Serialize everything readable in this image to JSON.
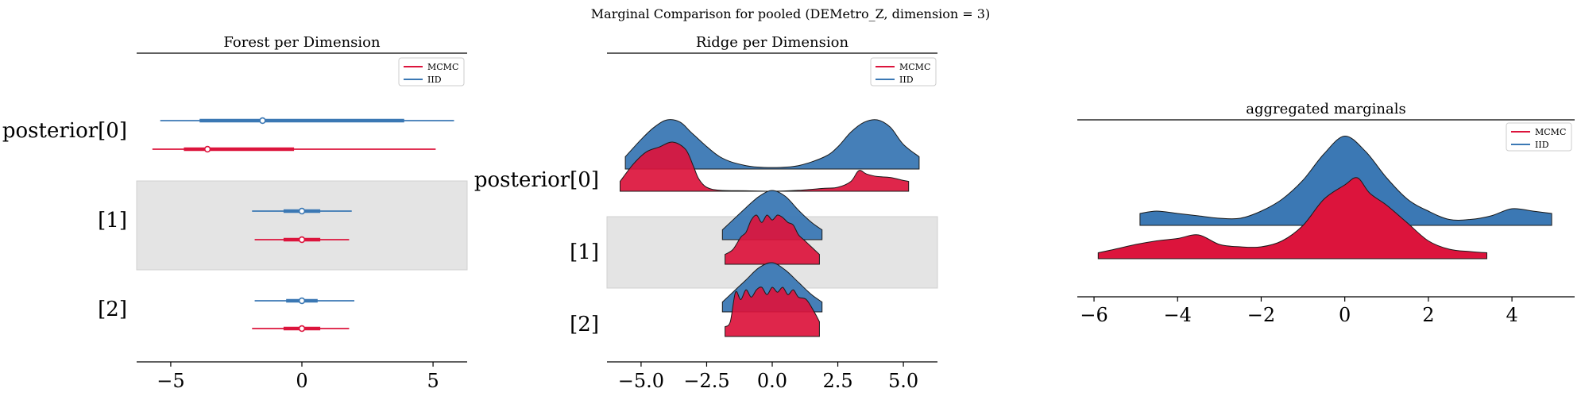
{
  "suptitle": "Marginal Comparison for pooled (DEMetro_Z, dimension = 3)",
  "colors": {
    "mcmc": "#dc143c",
    "iid": "#3b78b4",
    "band": "#e4e4e4"
  },
  "chart_data": [
    {
      "type": "forest",
      "title": "Forest per Dimension",
      "xlim": [
        -6.3,
        6.3
      ],
      "xticks": [
        -5,
        0,
        5
      ],
      "xtick_labels": [
        "−5",
        "0",
        "5"
      ],
      "rows": [
        "posterior[0]",
        "[1]",
        "[2]"
      ],
      "legend": {
        "placement": "top-right",
        "entries": [
          "MCMC",
          "IID"
        ]
      },
      "series": [
        {
          "name": "IID",
          "intervals": [
            {
              "low": -5.4,
              "q25": -3.9,
              "median": -1.5,
              "q75": 3.9,
              "high": 5.8
            },
            {
              "low": -1.9,
              "q25": -0.7,
              "median": 0.0,
              "q75": 0.7,
              "high": 1.9
            },
            {
              "low": -1.8,
              "q25": -0.6,
              "median": 0.0,
              "q75": 0.6,
              "high": 2.0
            }
          ]
        },
        {
          "name": "MCMC",
          "intervals": [
            {
              "low": -5.7,
              "q25": -4.5,
              "median": -3.6,
              "q75": -0.3,
              "high": 5.1
            },
            {
              "low": -1.8,
              "q25": -0.7,
              "median": 0.0,
              "q75": 0.7,
              "high": 1.8
            },
            {
              "low": -1.9,
              "q25": -0.7,
              "median": 0.0,
              "q75": 0.7,
              "high": 1.8
            }
          ]
        }
      ]
    },
    {
      "type": "ridge",
      "title": "Ridge per Dimension",
      "xlim": [
        -6.3,
        6.3
      ],
      "xticks": [
        -5,
        -2.5,
        0,
        2.5,
        5
      ],
      "xtick_labels": [
        "−5.0",
        "−2.5",
        "0.0",
        "2.5",
        "5.0"
      ],
      "rows": [
        "posterior[0]",
        "[1]",
        "[2]"
      ],
      "legend": {
        "placement": "top-right",
        "entries": [
          "MCMC",
          "IID"
        ]
      },
      "series": [
        {
          "name": "IID",
          "densities": [
            {
              "x": [
                -5.6,
                -5,
                -4.5,
                -4,
                -3.5,
                -3,
                -2,
                -1,
                0,
                1,
                2,
                2.5,
                3,
                3.5,
                4,
                4.5,
                5,
                5.6
              ],
              "y": [
                0.25,
                0.6,
                0.85,
                1.0,
                0.95,
                0.7,
                0.25,
                0.07,
                0.03,
                0.07,
                0.25,
                0.45,
                0.75,
                0.95,
                1.0,
                0.85,
                0.5,
                0.25
              ]
            },
            {
              "x": [
                -1.9,
                -1.5,
                -1,
                -0.5,
                0,
                0.5,
                1,
                1.5,
                1.9
              ],
              "y": [
                0.2,
                0.4,
                0.65,
                0.88,
                1.0,
                0.88,
                0.6,
                0.35,
                0.2
              ]
            },
            {
              "x": [
                -1.9,
                -1.5,
                -1,
                -0.5,
                0,
                0.5,
                1,
                1.5,
                1.9
              ],
              "y": [
                0.2,
                0.4,
                0.65,
                0.9,
                1.0,
                0.85,
                0.6,
                0.35,
                0.2
              ]
            }
          ]
        },
        {
          "name": "MCMC",
          "densities": [
            {
              "x": [
                -5.8,
                -5.3,
                -4.8,
                -4.3,
                -3.8,
                -3.3,
                -3,
                -2.8,
                -2.5,
                -2,
                -1,
                0,
                1,
                2,
                2.5,
                3,
                3.3,
                3.6,
                4,
                4.5,
                5,
                5.2
              ],
              "y": [
                0.2,
                0.55,
                0.8,
                0.9,
                1.0,
                0.85,
                0.5,
                0.25,
                0.08,
                0.02,
                0.01,
                0.0,
                0.02,
                0.06,
                0.08,
                0.2,
                0.42,
                0.35,
                0.3,
                0.28,
                0.22,
                0.2
              ]
            },
            {
              "x": [
                -1.8,
                -1.5,
                -1.2,
                -1,
                -0.8,
                -0.6,
                -0.4,
                -0.2,
                0,
                0.2,
                0.4,
                0.6,
                0.8,
                1,
                1.2,
                1.5,
                1.8
              ],
              "y": [
                0.2,
                0.3,
                0.55,
                0.65,
                0.9,
                1.0,
                0.85,
                1.0,
                0.9,
                1.0,
                0.95,
                0.85,
                0.8,
                0.6,
                0.5,
                0.35,
                0.2
              ]
            },
            {
              "x": [
                -1.8,
                -1.6,
                -1.4,
                -1.2,
                -1,
                -0.8,
                -0.6,
                -0.4,
                -0.2,
                0,
                0.2,
                0.4,
                0.6,
                0.8,
                1,
                1.3,
                1.6,
                1.8
              ],
              "y": [
                0.2,
                0.3,
                0.9,
                0.75,
                0.95,
                0.8,
                0.95,
                1.0,
                0.85,
                1.0,
                0.9,
                1.0,
                0.85,
                0.95,
                0.8,
                0.75,
                0.5,
                0.3
              ]
            }
          ]
        }
      ]
    },
    {
      "type": "area",
      "title": "aggregated marginals",
      "xlim": [
        -6.4,
        5.5
      ],
      "xticks": [
        -6,
        -4,
        -2,
        0,
        2,
        4
      ],
      "xtick_labels": [
        "−6",
        "−4",
        "−2",
        "0",
        "2",
        "4"
      ],
      "legend": {
        "placement": "top-right",
        "entries": [
          "MCMC",
          "IID"
        ]
      },
      "series": [
        {
          "name": "IID",
          "x": [
            -4.9,
            -4.5,
            -4,
            -3.5,
            -3,
            -2.5,
            -2,
            -1.5,
            -1,
            -0.5,
            0,
            0.5,
            1,
            1.5,
            2,
            2.5,
            3,
            3.5,
            4,
            4.5,
            4.95
          ],
          "y": [
            0.1,
            0.12,
            0.1,
            0.08,
            0.06,
            0.06,
            0.12,
            0.22,
            0.38,
            0.6,
            0.75,
            0.62,
            0.4,
            0.22,
            0.12,
            0.05,
            0.05,
            0.08,
            0.14,
            0.12,
            0.1
          ]
        },
        {
          "name": "MCMC",
          "x": [
            -5.9,
            -5.5,
            -5,
            -4.5,
            -4,
            -3.5,
            -3,
            -2.5,
            -2,
            -1.5,
            -1,
            -0.5,
            0,
            0.3,
            0.6,
            1,
            1.5,
            2,
            2.5,
            3,
            3.4
          ],
          "y": [
            0.05,
            0.08,
            0.12,
            0.15,
            0.17,
            0.2,
            0.12,
            0.1,
            0.1,
            0.15,
            0.28,
            0.5,
            0.62,
            0.68,
            0.55,
            0.45,
            0.3,
            0.15,
            0.08,
            0.06,
            0.05
          ]
        }
      ]
    }
  ]
}
